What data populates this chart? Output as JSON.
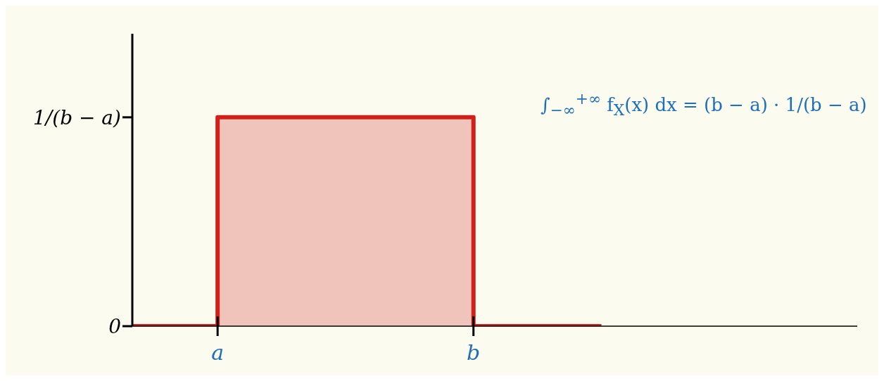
{
  "chart_data": {
    "type": "step",
    "categories": [
      null,
      null,
      "a",
      null,
      null,
      null,
      null,
      null,
      "b",
      null,
      null,
      null,
      null,
      null,
      null,
      null,
      null,
      null
    ],
    "values": [
      0,
      0,
      1,
      1,
      1,
      1,
      1,
      1,
      0,
      0,
      0,
      0,
      null,
      null,
      null,
      null,
      null,
      null
    ],
    "color": "#d0201a",
    "ylim": [
      0,
      1.4
    ],
    "yticks": [
      {
        "value": 0,
        "label": "0"
      },
      {
        "value": 1,
        "label": "1/(b − a)"
      }
    ],
    "annotations": [
      "∫$_{−∞}$$^{+∞}$ f$_{X}$(x) dx = (b − a) · 1/(b − a)"
    ]
  }
}
